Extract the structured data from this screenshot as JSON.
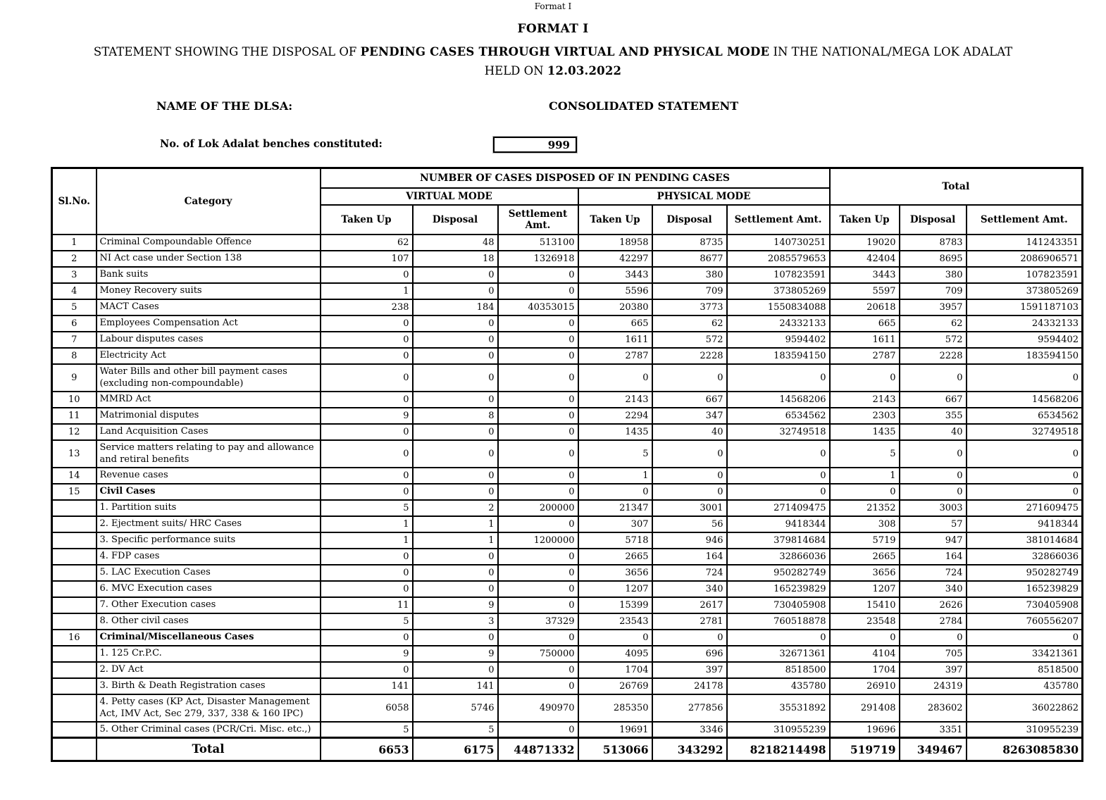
{
  "page": {
    "watermark": "Format I",
    "title": "FORMAT I",
    "subtitle": {
      "prefix": "STATEMENT SHOWING THE DISPOSAL OF ",
      "bold": "PENDING CASES THROUGH VIRTUAL AND PHYSICAL MODE",
      "suffix": " IN THE NATIONAL/MEGA LOK ADALAT",
      "line2_prefix": "HELD ON ",
      "line2_date": "12.03.2022"
    },
    "dlsa_label": "NAME OF THE DLSA:",
    "statement_type": "CONSOLIDATED STATEMENT",
    "benches_label": "No. of Lok Adalat benches constituted:",
    "benches_value": "999"
  },
  "table": {
    "headers": {
      "sl_no": "Sl.No.",
      "category": "Category",
      "group": "NUMBER OF CASES DISPOSED OF IN PENDING CASES",
      "virtual_mode": "VIRTUAL MODE",
      "physical_mode": "PHYSICAL MODE",
      "total": "Total",
      "taken_up": "Taken Up",
      "disposal": "Disposal",
      "settlement_amt": "Settlement Amt."
    },
    "rows": [
      {
        "sl": "1",
        "category": "Criminal Compoundable Offence",
        "bold": false,
        "values": [
          "62",
          "48",
          "513100",
          "18958",
          "8735",
          "140730251",
          "19020",
          "8783",
          "141243351"
        ]
      },
      {
        "sl": "2",
        "category": "NI Act case under Section 138",
        "bold": false,
        "values": [
          "107",
          "18",
          "1326918",
          "42297",
          "8677",
          "2085579653",
          "42404",
          "8695",
          "2086906571"
        ]
      },
      {
        "sl": "3",
        "category": "Bank suits",
        "bold": false,
        "values": [
          "0",
          "0",
          "0",
          "3443",
          "380",
          "107823591",
          "3443",
          "380",
          "107823591"
        ]
      },
      {
        "sl": "4",
        "category": "Money Recovery suits",
        "bold": false,
        "values": [
          "1",
          "0",
          "0",
          "5596",
          "709",
          "373805269",
          "5597",
          "709",
          "373805269"
        ]
      },
      {
        "sl": "5",
        "category": "MACT Cases",
        "bold": false,
        "values": [
          "238",
          "184",
          "40353015",
          "20380",
          "3773",
          "1550834088",
          "20618",
          "3957",
          "1591187103"
        ]
      },
      {
        "sl": "6",
        "category": "Employees Compensation Act",
        "bold": false,
        "values": [
          "0",
          "0",
          "0",
          "665",
          "62",
          "24332133",
          "665",
          "62",
          "24332133"
        ]
      },
      {
        "sl": "7",
        "category": "Labour disputes cases",
        "bold": false,
        "values": [
          "0",
          "0",
          "0",
          "1611",
          "572",
          "9594402",
          "1611",
          "572",
          "9594402"
        ]
      },
      {
        "sl": "8",
        "category": "Electricity Act",
        "bold": false,
        "values": [
          "0",
          "0",
          "0",
          "2787",
          "2228",
          "183594150",
          "2787",
          "2228",
          "183594150"
        ]
      },
      {
        "sl": "9",
        "category": "Water Bills and other bill payment cases (excluding non-compoundable)",
        "bold": false,
        "values": [
          "0",
          "0",
          "0",
          "0",
          "0",
          "0",
          "0",
          "0",
          "0"
        ]
      },
      {
        "sl": "10",
        "category": "MMRD Act",
        "bold": false,
        "values": [
          "0",
          "0",
          "0",
          "2143",
          "667",
          "14568206",
          "2143",
          "667",
          "14568206"
        ]
      },
      {
        "sl": "11",
        "category": "Matrimonial disputes",
        "bold": false,
        "values": [
          "9",
          "8",
          "0",
          "2294",
          "347",
          "6534562",
          "2303",
          "355",
          "6534562"
        ]
      },
      {
        "sl": "12",
        "category": "Land Acquisition Cases",
        "bold": false,
        "values": [
          "0",
          "0",
          "0",
          "1435",
          "40",
          "32749518",
          "1435",
          "40",
          "32749518"
        ]
      },
      {
        "sl": "13",
        "category": "Service matters relating to pay and allowance and retiral benefits",
        "bold": false,
        "values": [
          "0",
          "0",
          "0",
          "5",
          "0",
          "0",
          "5",
          "0",
          "0"
        ]
      },
      {
        "sl": "14",
        "category": "Revenue cases",
        "bold": false,
        "values": [
          "0",
          "0",
          "0",
          "1",
          "0",
          "0",
          "1",
          "0",
          "0"
        ]
      },
      {
        "sl": "15",
        "category": "Civil Cases",
        "bold": true,
        "values": [
          "0",
          "0",
          "0",
          "0",
          "0",
          "0",
          "0",
          "0",
          "0"
        ]
      },
      {
        "sl": "",
        "category": "1. Partition suits",
        "bold": false,
        "values": [
          "5",
          "2",
          "200000",
          "21347",
          "3001",
          "271409475",
          "21352",
          "3003",
          "271609475"
        ]
      },
      {
        "sl": "",
        "category": "2. Ejectment suits/ HRC Cases",
        "bold": false,
        "values": [
          "1",
          "1",
          "0",
          "307",
          "56",
          "9418344",
          "308",
          "57",
          "9418344"
        ]
      },
      {
        "sl": "",
        "category": "3. Specific performance suits",
        "bold": false,
        "values": [
          "1",
          "1",
          "1200000",
          "5718",
          "946",
          "379814684",
          "5719",
          "947",
          "381014684"
        ]
      },
      {
        "sl": "",
        "category": "4. FDP cases",
        "bold": false,
        "values": [
          "0",
          "0",
          "0",
          "2665",
          "164",
          "32866036",
          "2665",
          "164",
          "32866036"
        ]
      },
      {
        "sl": "",
        "category": "5. LAC Execution Cases",
        "bold": false,
        "values": [
          "0",
          "0",
          "0",
          "3656",
          "724",
          "950282749",
          "3656",
          "724",
          "950282749"
        ]
      },
      {
        "sl": "",
        "category": "6. MVC Execution cases",
        "bold": false,
        "values": [
          "0",
          "0",
          "0",
          "1207",
          "340",
          "165239829",
          "1207",
          "340",
          "165239829"
        ]
      },
      {
        "sl": "",
        "category": "7. Other Execution cases",
        "bold": false,
        "values": [
          "11",
          "9",
          "0",
          "15399",
          "2617",
          "730405908",
          "15410",
          "2626",
          "730405908"
        ]
      },
      {
        "sl": "",
        "category": "8. Other civil cases",
        "bold": false,
        "values": [
          "5",
          "3",
          "37329",
          "23543",
          "2781",
          "760518878",
          "23548",
          "2784",
          "760556207"
        ]
      },
      {
        "sl": "16",
        "category": "Criminal/Miscellaneous Cases",
        "bold": true,
        "values": [
          "0",
          "0",
          "0",
          "0",
          "0",
          "0",
          "0",
          "0",
          "0"
        ]
      },
      {
        "sl": "",
        "category": "1. 125 Cr.P.C.",
        "bold": false,
        "values": [
          "9",
          "9",
          "750000",
          "4095",
          "696",
          "32671361",
          "4104",
          "705",
          "33421361"
        ]
      },
      {
        "sl": "",
        "category": "2. DV Act",
        "bold": false,
        "values": [
          "0",
          "0",
          "0",
          "1704",
          "397",
          "8518500",
          "1704",
          "397",
          "8518500"
        ]
      },
      {
        "sl": "",
        "category": "3. Birth & Death Registration cases",
        "bold": false,
        "values": [
          "141",
          "141",
          "0",
          "26769",
          "24178",
          "435780",
          "26910",
          "24319",
          "435780"
        ]
      },
      {
        "sl": "",
        "category": "4. Petty cases (KP Act, Disaster Management Act, IMV Act, Sec 279, 337, 338 & 160 IPC)",
        "bold": false,
        "values": [
          "6058",
          "5746",
          "490970",
          "285350",
          "277856",
          "35531892",
          "291408",
          "283602",
          "36022862"
        ]
      },
      {
        "sl": "",
        "category": "5. Other Criminal cases (PCR/Cri. Misc. etc.,)",
        "bold": false,
        "values": [
          "5",
          "5",
          "0",
          "19691",
          "3346",
          "310955239",
          "19696",
          "3351",
          "310955239"
        ]
      }
    ],
    "total_row": {
      "label": "Total",
      "values": [
        "6653",
        "6175",
        "44871332",
        "513066",
        "343292",
        "8218214498",
        "519719",
        "349467",
        "8263085830"
      ]
    }
  }
}
